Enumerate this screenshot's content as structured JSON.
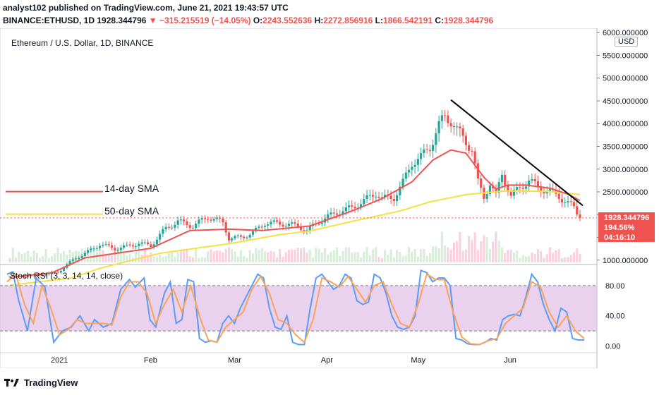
{
  "header": {
    "line1": "analyst102 published on TradingView.com, June 21, 2021 19:43:57 UTC",
    "symbol": "BINANCE:ETHUSD, 1D",
    "last": "1928.344796",
    "arrow": "▼",
    "change": "−315.215519 (−14.05%)",
    "o_label": "O:",
    "o": "2243.552636",
    "h_label": "H:",
    "h": "2272.856916",
    "l_label": "L:",
    "l": "1866.542191",
    "c_label": "C:",
    "c": "1928.344796"
  },
  "legend_title": "Ethereum / U.S. Dollar, 1D, BINANCE",
  "currency": "USD",
  "sma14_label": "14-day SMA",
  "sma50_label": "50-day SMA",
  "rsi_title": "Stoch RSI (3, 3, 14, 14, close)",
  "price_badge": {
    "price": "1928.344796",
    "pct": "194.56%",
    "countdown": "04:16:10"
  },
  "footer_brand": "TradingView",
  "colors": {
    "up": "#26a69a",
    "down": "#ef5350",
    "sma14": "#ef5350",
    "sma50": "#f5e142",
    "k": "#5b9cf6",
    "d": "#f7a35c",
    "trend": "#000000",
    "rsi_band": "#e1bee7"
  },
  "chart_data": [
    {
      "type": "candlestick",
      "title": "Ethereum / U.S. Dollar, 1D, BINANCE",
      "start_date": "2020-12-16",
      "x_ticks": [
        {
          "label": "2021",
          "day": 16
        },
        {
          "label": "Feb",
          "day": 47
        },
        {
          "label": "Mar",
          "day": 75
        },
        {
          "label": "Apr",
          "day": 106
        },
        {
          "label": "May",
          "day": 136
        },
        {
          "label": "Jun",
          "day": 167
        }
      ],
      "y_ticks": [
        1000,
        1500,
        2000,
        2500,
        3000,
        3500,
        4000,
        4500,
        5000,
        5500,
        6000
      ],
      "y_tick_labels": [
        "1000.000000",
        "1500.000000",
        "2000.000000",
        "2500.000000",
        "3000.000000",
        "3500.000000",
        "4000.000000",
        "4500.000000",
        "5000.000000",
        "5500.000000",
        "6000.000000"
      ],
      "ylim": [
        950,
        6050
      ],
      "last_price": 1928.344796,
      "close_keypoints": [
        [
          0,
          640
        ],
        [
          8,
          660
        ],
        [
          16,
          740
        ],
        [
          22,
          1050
        ],
        [
          26,
          1180
        ],
        [
          30,
          1350
        ],
        [
          35,
          1250
        ],
        [
          39,
          1300
        ],
        [
          43,
          1370
        ],
        [
          47,
          1320
        ],
        [
          52,
          1700
        ],
        [
          56,
          1850
        ],
        [
          61,
          1750
        ],
        [
          66,
          1950
        ],
        [
          71,
          1830
        ],
        [
          73,
          1480
        ],
        [
          77,
          1500
        ],
        [
          81,
          1600
        ],
        [
          85,
          1820
        ],
        [
          91,
          1800
        ],
        [
          96,
          1750
        ],
        [
          99,
          1650
        ],
        [
          103,
          1850
        ],
        [
          109,
          2050
        ],
        [
          114,
          2150
        ],
        [
          118,
          2300
        ],
        [
          122,
          2480
        ],
        [
          124,
          2350
        ],
        [
          128,
          2380
        ],
        [
          131,
          2700
        ],
        [
          134,
          3150
        ],
        [
          137,
          3250
        ],
        [
          140,
          3500
        ],
        [
          143,
          3950
        ],
        [
          145,
          4150
        ],
        [
          147,
          4080
        ],
        [
          149,
          3850
        ],
        [
          152,
          3600
        ],
        [
          154,
          3450
        ],
        [
          156,
          2700
        ],
        [
          158,
          2380
        ],
        [
          160,
          2700
        ],
        [
          162,
          2400
        ],
        [
          164,
          2900
        ],
        [
          167,
          2400
        ],
        [
          170,
          2600
        ],
        [
          173,
          2750
        ],
        [
          176,
          2600
        ],
        [
          180,
          2500
        ],
        [
          183,
          2400
        ],
        [
          186,
          2250
        ],
        [
          188,
          2150
        ],
        [
          190,
          1928
        ]
      ],
      "sma14_keypoints": [
        [
          0,
          620
        ],
        [
          14,
          720
        ],
        [
          25,
          1050
        ],
        [
          47,
          1260
        ],
        [
          60,
          1650
        ],
        [
          73,
          1680
        ],
        [
          84,
          1650
        ],
        [
          100,
          1750
        ],
        [
          114,
          2080
        ],
        [
          124,
          2350
        ],
        [
          134,
          2720
        ],
        [
          141,
          3200
        ],
        [
          147,
          3420
        ],
        [
          152,
          3350
        ],
        [
          158,
          2820
        ],
        [
          162,
          2560
        ],
        [
          166,
          2650
        ],
        [
          172,
          2650
        ],
        [
          180,
          2580
        ],
        [
          186,
          2450
        ],
        [
          190,
          2310
        ]
      ],
      "sma50_keypoints": [
        [
          0,
          450
        ],
        [
          20,
          600
        ],
        [
          30,
          820
        ],
        [
          50,
          1150
        ],
        [
          74,
          1370
        ],
        [
          90,
          1560
        ],
        [
          100,
          1640
        ],
        [
          114,
          1850
        ],
        [
          130,
          2080
        ],
        [
          140,
          2280
        ],
        [
          152,
          2440
        ],
        [
          165,
          2520
        ],
        [
          180,
          2510
        ],
        [
          190,
          2440
        ]
      ],
      "sma14_label": "14-day SMA",
      "sma50_label": "50-day SMA",
      "trendline": [
        [
          147,
          4520
        ],
        [
          190,
          2200
        ]
      ]
    },
    {
      "type": "line",
      "title": "Stoch RSI (3, 3, 14, 14, close)",
      "y_ticks": [
        0,
        40,
        80
      ],
      "y_tick_labels": [
        "0.00",
        "40.00",
        "80.00"
      ],
      "band": [
        20,
        80
      ],
      "ylim": [
        -5,
        105
      ],
      "series": [
        {
          "name": "K",
          "keypoints": [
            [
              0,
              95
            ],
            [
              2,
              98
            ],
            [
              4,
              60
            ],
            [
              7,
              20
            ],
            [
              10,
              90
            ],
            [
              13,
              78
            ],
            [
              16,
              5
            ],
            [
              19,
              20
            ],
            [
              22,
              25
            ],
            [
              25,
              40
            ],
            [
              28,
              20
            ],
            [
              30,
              35
            ],
            [
              33,
              25
            ],
            [
              36,
              30
            ],
            [
              39,
              75
            ],
            [
              42,
              88
            ],
            [
              44,
              78
            ],
            [
              47,
              90
            ],
            [
              49,
              35
            ],
            [
              51,
              25
            ],
            [
              54,
              70
            ],
            [
              56,
              85
            ],
            [
              58,
              30
            ],
            [
              60,
              35
            ],
            [
              62,
              88
            ],
            [
              64,
              85
            ],
            [
              66,
              10
            ],
            [
              68,
              5
            ],
            [
              70,
              7
            ],
            [
              72,
              5
            ],
            [
              74,
              30
            ],
            [
              76,
              40
            ],
            [
              78,
              30
            ],
            [
              80,
              50
            ],
            [
              82,
              65
            ],
            [
              84,
              80
            ],
            [
              86,
              95
            ],
            [
              88,
              90
            ],
            [
              90,
              50
            ],
            [
              92,
              25
            ],
            [
              94,
              22
            ],
            [
              96,
              40
            ],
            [
              98,
              5
            ],
            [
              100,
              2
            ],
            [
              102,
              2
            ],
            [
              104,
              50
            ],
            [
              106,
              90
            ],
            [
              108,
              95
            ],
            [
              110,
              85
            ],
            [
              112,
              75
            ],
            [
              114,
              80
            ],
            [
              116,
              95
            ],
            [
              118,
              90
            ],
            [
              120,
              60
            ],
            [
              122,
              55
            ],
            [
              124,
              58
            ],
            [
              126,
              95
            ],
            [
              128,
              90
            ],
            [
              130,
              70
            ],
            [
              132,
              40
            ],
            [
              134,
              25
            ],
            [
              136,
              22
            ],
            [
              138,
              25
            ],
            [
              140,
              40
            ],
            [
              142,
              100
            ],
            [
              144,
              97
            ],
            [
              146,
              85
            ],
            [
              148,
              90
            ],
            [
              150,
              90
            ],
            [
              152,
              80
            ],
            [
              154,
              10
            ],
            [
              156,
              8
            ],
            [
              158,
              3
            ],
            [
              160,
              2
            ],
            [
              162,
              2
            ],
            [
              164,
              5
            ],
            [
              166,
              10
            ],
            [
              168,
              8
            ],
            [
              170,
              35
            ],
            [
              172,
              40
            ],
            [
              174,
              42
            ],
            [
              176,
              40
            ],
            [
              178,
              65
            ],
            [
              180,
              95
            ],
            [
              182,
              85
            ],
            [
              184,
              55
            ],
            [
              186,
              35
            ],
            [
              188,
              20
            ],
            [
              190,
              50
            ],
            [
              192,
              45
            ],
            [
              194,
              10
            ],
            [
              196,
              8
            ],
            [
              198,
              8
            ]
          ]
        },
        {
          "name": "D",
          "keypoints": [
            [
              0,
              85
            ],
            [
              3,
              95
            ],
            [
              6,
              55
            ],
            [
              9,
              30
            ],
            [
              12,
              80
            ],
            [
              15,
              50
            ],
            [
              18,
              15
            ],
            [
              21,
              22
            ],
            [
              24,
              35
            ],
            [
              27,
              30
            ],
            [
              30,
              30
            ],
            [
              33,
              30
            ],
            [
              36,
              28
            ],
            [
              39,
              65
            ],
            [
              42,
              85
            ],
            [
              45,
              85
            ],
            [
              48,
              70
            ],
            [
              51,
              30
            ],
            [
              54,
              55
            ],
            [
              57,
              75
            ],
            [
              60,
              45
            ],
            [
              63,
              80
            ],
            [
              66,
              40
            ],
            [
              69,
              8
            ],
            [
              72,
              5
            ],
            [
              75,
              25
            ],
            [
              78,
              35
            ],
            [
              81,
              45
            ],
            [
              84,
              75
            ],
            [
              87,
              92
            ],
            [
              90,
              70
            ],
            [
              93,
              35
            ],
            [
              96,
              30
            ],
            [
              99,
              15
            ],
            [
              102,
              5
            ],
            [
              105,
              35
            ],
            [
              108,
              90
            ],
            [
              111,
              85
            ],
            [
              114,
              78
            ],
            [
              117,
              92
            ],
            [
              120,
              75
            ],
            [
              123,
              58
            ],
            [
              126,
              80
            ],
            [
              129,
              85
            ],
            [
              132,
              55
            ],
            [
              135,
              30
            ],
            [
              138,
              25
            ],
            [
              141,
              55
            ],
            [
              144,
              95
            ],
            [
              147,
              88
            ],
            [
              150,
              88
            ],
            [
              153,
              45
            ],
            [
              156,
              12
            ],
            [
              159,
              3
            ],
            [
              162,
              2
            ],
            [
              165,
              7
            ],
            [
              168,
              10
            ],
            [
              171,
              30
            ],
            [
              174,
              40
            ],
            [
              177,
              50
            ],
            [
              180,
              85
            ],
            [
              183,
              78
            ],
            [
              186,
              45
            ],
            [
              189,
              25
            ],
            [
              192,
              40
            ],
            [
              195,
              20
            ],
            [
              198,
              10
            ]
          ]
        }
      ],
      "x_domain": [
        0,
        198
      ]
    }
  ]
}
